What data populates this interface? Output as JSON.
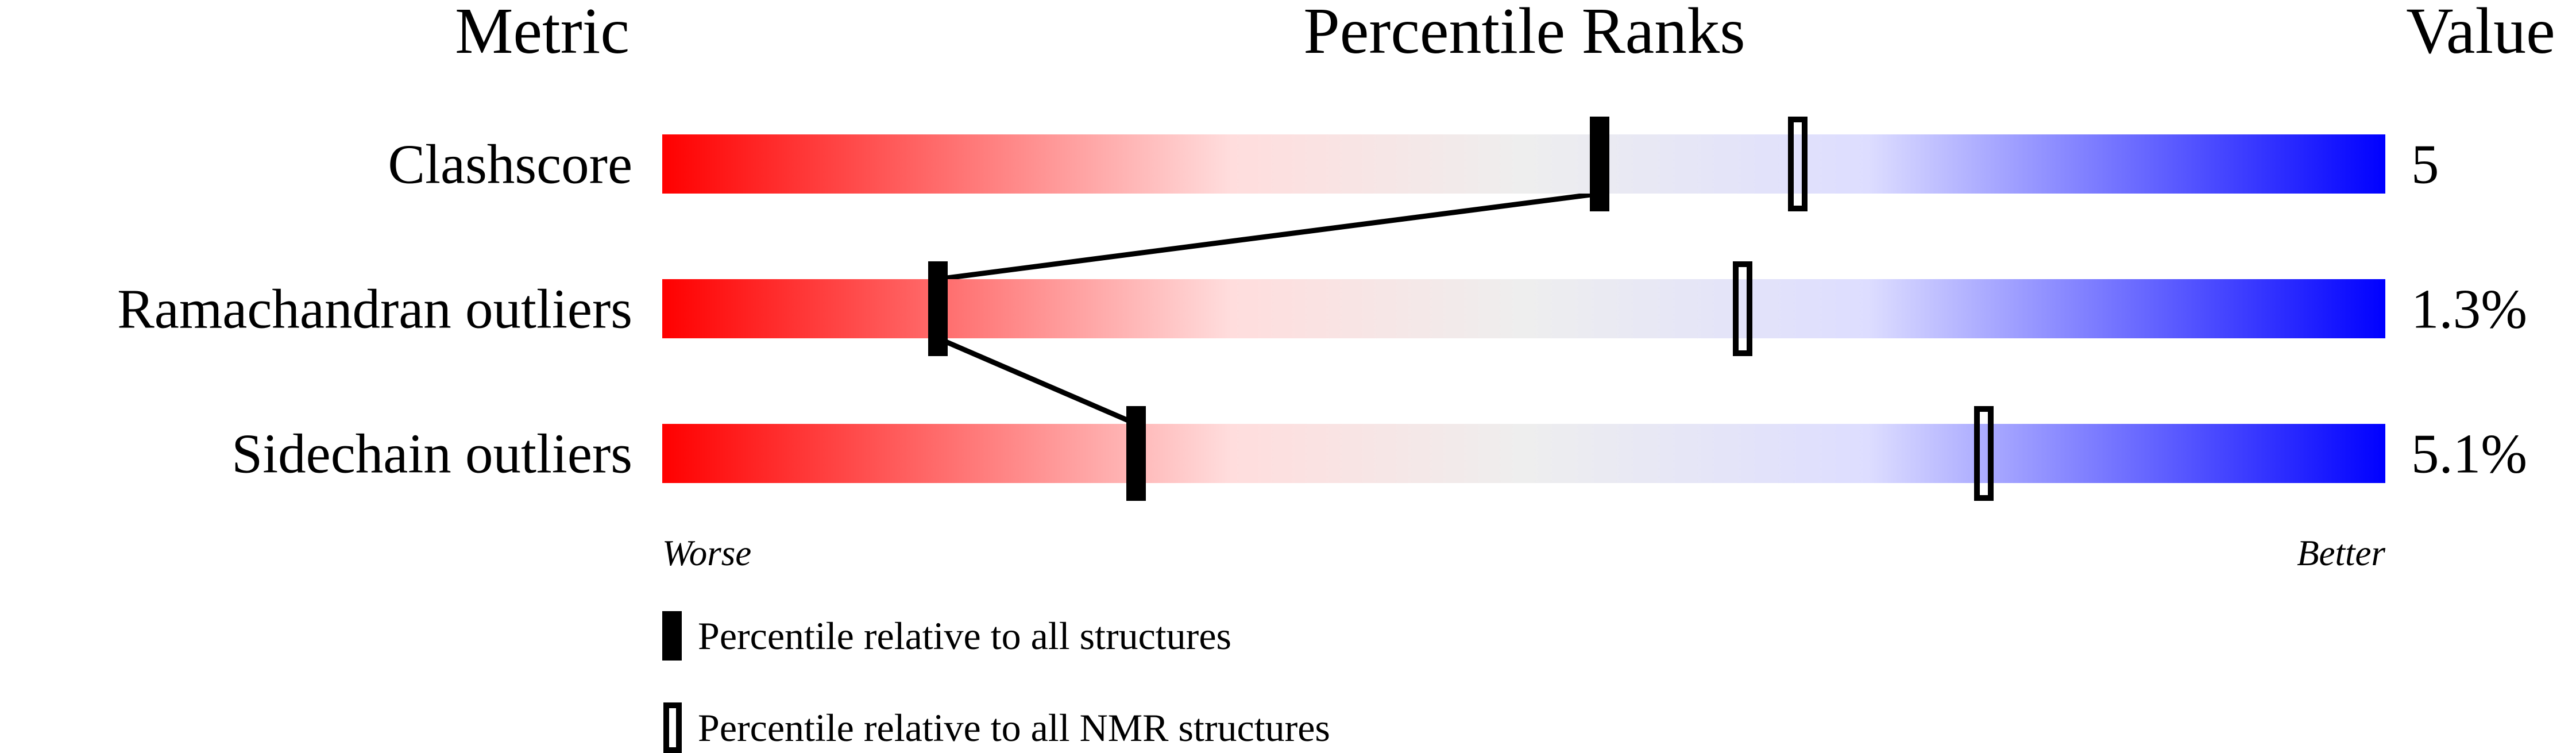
{
  "chart_data": {
    "type": "percentile-bar",
    "headers": {
      "metric": "Metric",
      "ranks": "Percentile Ranks",
      "value": "Value"
    },
    "xlim": [
      0,
      100
    ],
    "axis_labels": {
      "left": "Worse",
      "right": "Better"
    },
    "gradient_colors": [
      "#ff0000",
      "#ffdddd",
      "#eeeeee",
      "#ddddff",
      "#0000ff"
    ],
    "metrics": [
      {
        "name": "Clashscore",
        "value": "5",
        "percentile_all": 54.4,
        "percentile_nmr": 65.9
      },
      {
        "name": "Ramachandran outliers",
        "value": "1.3%",
        "percentile_all": 16.0,
        "percentile_nmr": 62.7
      },
      {
        "name": "Sidechain outliers",
        "value": "5.1%",
        "percentile_all": 27.5,
        "percentile_nmr": 76.7
      }
    ],
    "legend": [
      {
        "marker": "filled",
        "label": "Percentile relative to all structures"
      },
      {
        "marker": "open",
        "label": "Percentile relative to all NMR structures"
      }
    ]
  }
}
